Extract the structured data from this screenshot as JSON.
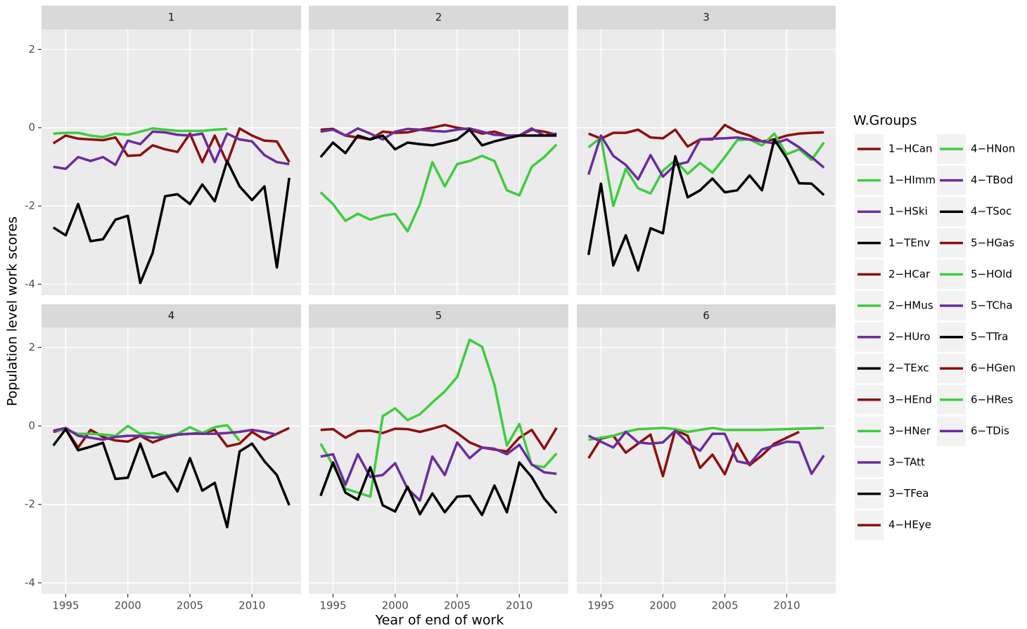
{
  "chart_data": {
    "type": "line",
    "y_label": "Population level work scores",
    "x_label": "Year of end of work",
    "legend_title": "W.Groups",
    "x": [
      1994,
      1995,
      1996,
      1997,
      1998,
      1999,
      2000,
      2001,
      2002,
      2003,
      2004,
      2005,
      2006,
      2007,
      2008,
      2009,
      2010,
      2011,
      2012,
      2013
    ],
    "xlim": [
      1993.05,
      2013.95
    ],
    "xticks": [
      1995,
      2000,
      2005,
      2010
    ],
    "ylim": [
      -4.28,
      2.51
    ],
    "yticks": [
      -4,
      -2,
      0,
      2
    ],
    "grid": true,
    "legend_position": "right",
    "panels": [
      {
        "title": "1",
        "series": [
          {
            "name": "1−HCan",
            "color": "#8b1010",
            "values": [
              -0.4,
              -0.2,
              -0.28,
              -0.3,
              -0.32,
              -0.25,
              -0.72,
              -0.7,
              -0.45,
              -0.55,
              -0.62,
              -0.15,
              -0.88,
              -0.2,
              -0.9,
              -0.02,
              -0.2,
              -0.33,
              -0.35,
              -0.88
            ]
          },
          {
            "name": "1−HImm",
            "color": "#3fcc3f",
            "values": [
              -0.15,
              -0.13,
              -0.13,
              -0.2,
              -0.24,
              -0.15,
              -0.18,
              -0.1,
              -0.02,
              -0.05,
              -0.08,
              -0.08,
              -0.08,
              -0.05,
              -0.03,
              null,
              null,
              null,
              null,
              null
            ]
          },
          {
            "name": "1−HSki",
            "color": "#6b2c9c",
            "values": [
              -1.0,
              -1.05,
              -0.75,
              -0.85,
              -0.75,
              -0.95,
              -0.33,
              -0.42,
              -0.1,
              -0.12,
              -0.18,
              -0.2,
              -0.15,
              -0.88,
              -0.15,
              -0.3,
              -0.35,
              -0.7,
              -0.88,
              -0.93
            ]
          },
          {
            "name": "1−TEnv",
            "color": "#000000",
            "values": [
              -2.55,
              -2.75,
              -1.95,
              -2.9,
              -2.85,
              -2.35,
              -2.25,
              -3.97,
              -3.2,
              -1.75,
              -1.7,
              -1.95,
              -1.45,
              -1.88,
              -0.85,
              -1.5,
              -1.85,
              -1.5,
              -3.57,
              -1.28
            ]
          }
        ]
      },
      {
        "title": "2",
        "series": [
          {
            "name": "2−HCar",
            "color": "#8b1010",
            "values": [
              -0.05,
              -0.03,
              -0.2,
              -0.25,
              -0.3,
              -0.1,
              -0.13,
              -0.12,
              -0.05,
              0.0,
              0.07,
              0.0,
              -0.05,
              -0.15,
              -0.1,
              -0.2,
              -0.2,
              -0.05,
              -0.1,
              -0.18
            ]
          },
          {
            "name": "2−HMus",
            "color": "#3fcc3f",
            "values": [
              -1.65,
              -1.95,
              -2.38,
              -2.2,
              -2.35,
              -2.25,
              -2.2,
              -2.65,
              -1.95,
              -0.88,
              -1.5,
              -0.93,
              -0.85,
              -0.72,
              -0.85,
              -1.6,
              -1.73,
              -1.0,
              -0.75,
              -0.43
            ]
          },
          {
            "name": "2−HUro",
            "color": "#6b2c9c",
            "values": [
              -0.1,
              -0.05,
              -0.2,
              -0.02,
              -0.15,
              -0.3,
              -0.1,
              -0.03,
              -0.05,
              -0.08,
              -0.1,
              -0.05,
              -0.02,
              -0.1,
              -0.18,
              -0.2,
              -0.2,
              -0.02,
              -0.2,
              -0.15
            ]
          },
          {
            "name": "2−TExc",
            "color": "#000000",
            "values": [
              -0.75,
              -0.38,
              -0.65,
              -0.2,
              -0.3,
              -0.2,
              -0.55,
              -0.38,
              -0.42,
              -0.45,
              -0.38,
              -0.3,
              -0.05,
              -0.45,
              -0.35,
              -0.27,
              -0.2,
              -0.2,
              -0.2,
              -0.2
            ]
          }
        ]
      },
      {
        "title": "3",
        "series": [
          {
            "name": "3−HEnd",
            "color": "#8b1010",
            "values": [
              -0.15,
              -0.28,
              -0.13,
              -0.13,
              -0.05,
              -0.25,
              -0.27,
              -0.05,
              -0.48,
              -0.3,
              -0.3,
              0.07,
              -0.1,
              -0.2,
              -0.35,
              -0.3,
              -0.2,
              -0.15,
              -0.13,
              -0.12
            ]
          },
          {
            "name": "3−HNer",
            "color": "#3fcc3f",
            "values": [
              -0.5,
              -0.25,
              -2.0,
              -1.05,
              -1.55,
              -1.68,
              -1.1,
              -0.83,
              -1.18,
              -0.9,
              -1.15,
              -0.75,
              -0.32,
              -0.3,
              -0.45,
              -0.15,
              -0.68,
              -0.55,
              -0.82,
              -0.38
            ]
          },
          {
            "name": "3−TAtt",
            "color": "#6b2c9c",
            "values": [
              -1.2,
              -0.2,
              -0.72,
              -0.95,
              -1.32,
              -0.7,
              -1.25,
              -0.95,
              -0.88,
              -0.3,
              -0.28,
              -0.27,
              -0.25,
              -0.3,
              -0.35,
              -0.4,
              -0.3,
              -0.5,
              -0.75,
              -1.02
            ]
          },
          {
            "name": "3−TFea",
            "color": "#000000",
            "values": [
              -3.25,
              -1.43,
              -3.52,
              -2.75,
              -3.65,
              -2.57,
              -2.7,
              -0.73,
              -1.78,
              -1.6,
              -1.3,
              -1.65,
              -1.6,
              -1.22,
              -1.6,
              -0.3,
              -0.78,
              -1.42,
              -1.43,
              -1.72
            ]
          }
        ]
      },
      {
        "title": "4",
        "series": [
          {
            "name": "4−HEye",
            "color": "#8b1010",
            "values": [
              -0.15,
              -0.08,
              -0.55,
              -0.1,
              -0.28,
              -0.37,
              -0.4,
              -0.25,
              -0.42,
              -0.3,
              -0.22,
              -0.2,
              -0.18,
              -0.1,
              -0.52,
              -0.45,
              -0.15,
              -0.35,
              -0.2,
              -0.05
            ]
          },
          {
            "name": "4−HNon",
            "color": "#3fcc3f",
            "values": [
              -0.12,
              -0.1,
              -0.2,
              -0.2,
              -0.22,
              -0.25,
              0.0,
              -0.2,
              -0.18,
              -0.25,
              -0.2,
              -0.03,
              -0.18,
              -0.03,
              0.02,
              -0.38,
              null,
              null,
              null,
              null
            ]
          },
          {
            "name": "4−TBod",
            "color": "#6b2c9c",
            "values": [
              -0.12,
              -0.05,
              -0.25,
              -0.3,
              -0.35,
              -0.28,
              -0.25,
              -0.25,
              -0.3,
              -0.28,
              -0.22,
              -0.2,
              -0.2,
              -0.2,
              -0.18,
              -0.15,
              -0.1,
              -0.15,
              -0.22,
              null
            ]
          },
          {
            "name": "4−TSoc",
            "color": "#000000",
            "values": [
              -0.5,
              -0.08,
              -0.62,
              -0.53,
              -0.43,
              -1.35,
              -1.32,
              -0.45,
              -1.3,
              -1.18,
              -1.67,
              -0.82,
              -1.65,
              -1.45,
              -2.58,
              -0.65,
              -0.45,
              -0.9,
              -1.25,
              -2.02
            ]
          }
        ]
      },
      {
        "title": "5",
        "series": [
          {
            "name": "5−HGas",
            "color": "#8b1010",
            "values": [
              -0.1,
              -0.08,
              -0.3,
              -0.13,
              -0.12,
              -0.18,
              -0.07,
              -0.08,
              -0.15,
              -0.07,
              0.02,
              -0.18,
              -0.42,
              -0.55,
              -0.6,
              -0.65,
              -0.3,
              -0.1,
              -0.58,
              -0.05
            ]
          },
          {
            "name": "5−HOld",
            "color": "#3fcc3f",
            "values": [
              -0.45,
              -1.0,
              -1.6,
              -1.7,
              -1.8,
              0.25,
              0.45,
              0.15,
              0.3,
              0.6,
              0.88,
              1.25,
              2.2,
              2.02,
              1.05,
              -0.5,
              0.05,
              -1.0,
              -1.05,
              -0.7
            ]
          },
          {
            "name": "5−TCha",
            "color": "#6b2c9c",
            "values": [
              -0.78,
              -0.72,
              -1.5,
              -0.72,
              -1.3,
              -1.25,
              -0.95,
              -1.6,
              -1.9,
              -0.78,
              -1.25,
              -0.42,
              -0.82,
              -0.55,
              -0.58,
              -0.72,
              -0.48,
              -0.98,
              -1.18,
              -1.22
            ]
          },
          {
            "name": "5−TTra",
            "color": "#000000",
            "values": [
              -1.78,
              -0.93,
              -1.7,
              -1.88,
              -1.05,
              -2.02,
              -2.18,
              -1.55,
              -2.25,
              -1.72,
              -2.2,
              -1.8,
              -1.78,
              -2.27,
              -1.52,
              -2.2,
              -0.93,
              -1.3,
              -1.85,
              -2.22
            ]
          }
        ]
      },
      {
        "title": "6",
        "series": [
          {
            "name": "6−HGen",
            "color": "#8b1010",
            "values": [
              -0.82,
              -0.32,
              -0.25,
              -0.68,
              -0.45,
              -0.22,
              -1.28,
              -0.1,
              -0.25,
              -1.07,
              -0.73,
              -1.23,
              -0.45,
              -1.0,
              -0.75,
              -0.45,
              -0.3,
              -0.15,
              null,
              null
            ]
          },
          {
            "name": "6−HRes",
            "color": "#3fcc3f",
            "values": [
              -0.35,
              -0.3,
              -0.25,
              -0.15,
              -0.08,
              -0.07,
              -0.05,
              -0.08,
              -0.15,
              -0.1,
              -0.05,
              -0.1,
              -0.1,
              -0.1,
              -0.1,
              -0.09,
              -0.08,
              -0.07,
              -0.06,
              -0.05
            ]
          },
          {
            "name": "6−TDis",
            "color": "#6b2c9c",
            "values": [
              -0.25,
              -0.4,
              -0.55,
              -0.15,
              -0.42,
              -0.45,
              -0.42,
              -0.12,
              -0.43,
              -0.63,
              -0.2,
              -0.2,
              -0.9,
              -0.97,
              -0.6,
              -0.5,
              -0.4,
              -0.42,
              -1.22,
              -0.75
            ]
          }
        ]
      }
    ]
  }
}
